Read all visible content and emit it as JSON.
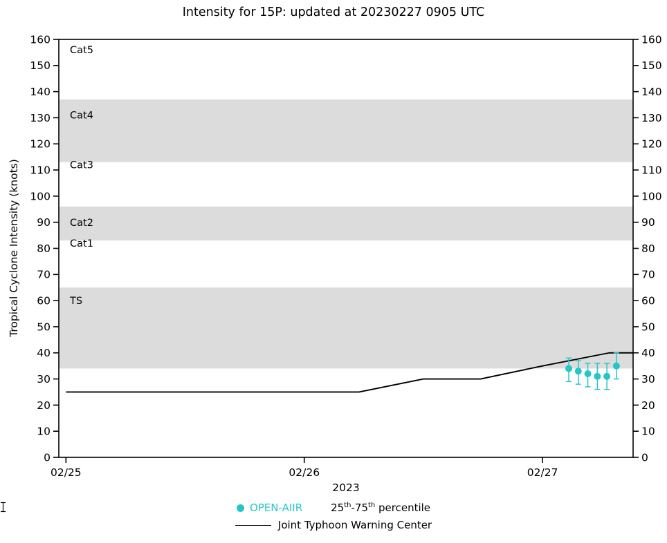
{
  "title": "Intensity for 15P: updated at 20230227 0905 UTC",
  "chart_data": {
    "type": "line",
    "title": "Intensity for 15P: updated at 20230227 0905 UTC",
    "ylabel": "Tropical Cyclone Intensity (knots)",
    "xlabel_year": "2023",
    "ylim": [
      0,
      160
    ],
    "yticks": [
      0,
      10,
      20,
      30,
      40,
      50,
      60,
      70,
      80,
      90,
      100,
      110,
      120,
      130,
      140,
      150,
      160
    ],
    "x_range_days": [
      -0.03,
      2.38
    ],
    "xticks": [
      {
        "t": 0,
        "label": "02/25"
      },
      {
        "t": 1,
        "label": "02/26"
      },
      {
        "t": 2,
        "label": "02/27"
      }
    ],
    "grid": false,
    "band_color": "#dcdcdc",
    "bands": [
      {
        "name": "TS",
        "from": 34,
        "to": 65
      },
      {
        "name": "Cat2",
        "from": 83,
        "to": 96
      },
      {
        "name": "Cat4",
        "from": 113,
        "to": 137
      }
    ],
    "category_labels": [
      {
        "text": "Cat5",
        "value": 156
      },
      {
        "text": "Cat4",
        "value": 131
      },
      {
        "text": "Cat3",
        "value": 112
      },
      {
        "text": "Cat2",
        "value": 90
      },
      {
        "text": "Cat1",
        "value": 82
      },
      {
        "text": "TS",
        "value": 60
      }
    ],
    "series": [
      {
        "name": "Joint Typhoon Warning Center",
        "type": "line",
        "color": "#000000",
        "points": [
          [
            0,
            25
          ],
          [
            1.23,
            25
          ],
          [
            1.5,
            30
          ],
          [
            1.74,
            30
          ],
          [
            2.0,
            35
          ],
          [
            2.28,
            40
          ],
          [
            2.38,
            40
          ]
        ]
      },
      {
        "name": "OPEN-AIIR",
        "type": "scatter",
        "color": "#26c6c6",
        "points": [
          {
            "t": 2.11,
            "v": 34,
            "lo": 29,
            "hi": 38
          },
          {
            "t": 2.15,
            "v": 33,
            "lo": 28,
            "hi": 37
          },
          {
            "t": 2.19,
            "v": 32,
            "lo": 27,
            "hi": 36
          },
          {
            "t": 2.23,
            "v": 31,
            "lo": 26,
            "hi": 36
          },
          {
            "t": 2.27,
            "v": 31,
            "lo": 26,
            "hi": 36
          },
          {
            "t": 2.31,
            "v": 35,
            "lo": 30,
            "hi": 40
          }
        ]
      }
    ],
    "legend_position": "bottom"
  },
  "legend": {
    "open_aiir": "OPEN-AIIR",
    "percentile": {
      "p1": "25",
      "s1": "th",
      "p2": "-75",
      "s2": "th",
      "p3": " percentile"
    },
    "jtwc": "Joint Typhoon Warning Center"
  }
}
